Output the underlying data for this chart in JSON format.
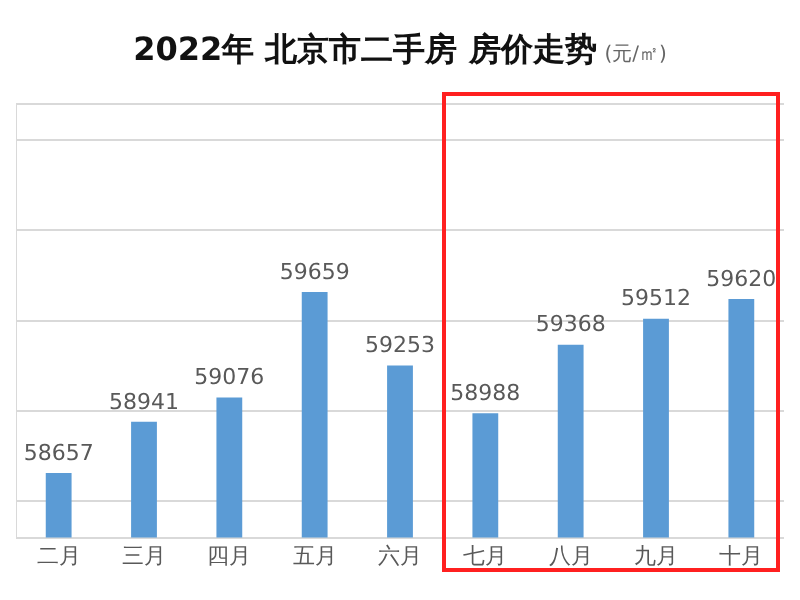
{
  "chart_data": {
    "type": "bar",
    "title": "2022年 北京市二手房 房价走势",
    "subtitle": "(元/㎡)",
    "categories": [
      "二月",
      "三月",
      "四月",
      "五月",
      "六月",
      "七月",
      "八月",
      "九月",
      "十月"
    ],
    "values": [
      58657,
      58941,
      59076,
      59659,
      59253,
      58988,
      59368,
      59512,
      59620
    ],
    "color": "#5b9bd5",
    "data_labels": true,
    "ylim": [
      58300,
      60700
    ],
    "tick_labels": "x",
    "grid": "y",
    "legend": false
  }
}
